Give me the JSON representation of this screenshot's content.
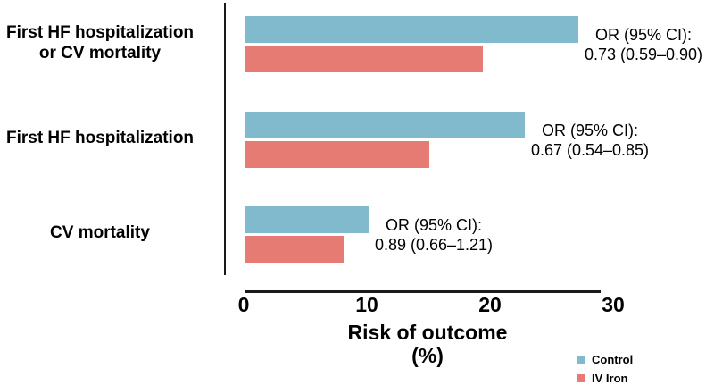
{
  "chart_data": {
    "type": "bar",
    "orientation": "horizontal",
    "categories": [
      "First HF hospitalization or CV mortality",
      "First HF hospitalization",
      "CV mortality"
    ],
    "category_label_lines": [
      [
        "First HF hospitalization",
        "or CV mortality"
      ],
      [
        "First HF hospitalization"
      ],
      [
        "CV mortality"
      ]
    ],
    "series": [
      {
        "name": "Control",
        "color": "#80bacc",
        "values": [
          27.0,
          22.7,
          10.0
        ]
      },
      {
        "name": "IV Iron",
        "color": "#e57b72",
        "values": [
          19.3,
          14.9,
          8.0
        ]
      }
    ],
    "annotations": [
      {
        "lines": [
          "OR (95% CI):",
          "0.73 (0.59–0.90)"
        ]
      },
      {
        "lines": [
          "OR (95% CI):",
          "0.67 (0.54–0.85)"
        ]
      },
      {
        "lines": [
          "OR (95% CI):",
          "0.89 (0.66–1.21)"
        ]
      }
    ],
    "xlabel": "Risk of outcome (%)",
    "xlim": [
      0,
      30
    ],
    "xticks": [
      "0",
      "10",
      "20",
      "30"
    ],
    "grid": false,
    "legend_position": "bottom-right"
  },
  "legend": {
    "items": [
      {
        "label": "Control",
        "color": "#80bacc"
      },
      {
        "label": "IV Iron",
        "color": "#e57b72"
      }
    ]
  },
  "colors": {
    "control": "#80bacc",
    "iv_iron": "#e57b72",
    "axis": "#1a1a1a",
    "background": "#ffffff"
  }
}
